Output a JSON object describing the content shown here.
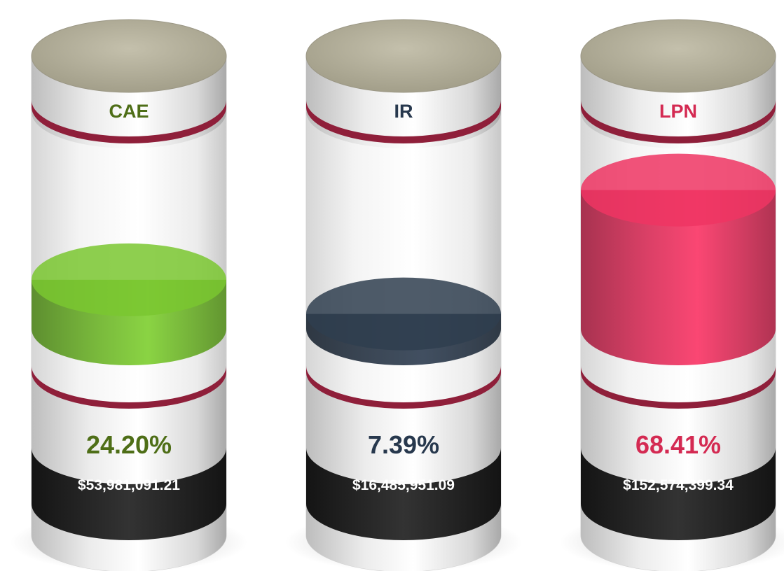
{
  "chart_data": {
    "type": "bar",
    "style": "3d-cylinder-fill-gauge",
    "categories": [
      "CAE",
      "IR",
      "LPN"
    ],
    "values": [
      24.2,
      7.39,
      68.41
    ],
    "value_labels": [
      "24.20%",
      "7.39%",
      "68.41%"
    ],
    "amounts": [
      "$53,981,091.21",
      "$16,485,951.09",
      "$152,574,399.34"
    ],
    "ylim": [
      0,
      100
    ],
    "colors": {
      "CAE": "#6fb52c",
      "IR": "#2b3848",
      "LPN": "#d9305a"
    },
    "label_colors": {
      "CAE": "#4e6e17",
      "IR": "#27384d",
      "LPN": "#d42a52"
    }
  }
}
